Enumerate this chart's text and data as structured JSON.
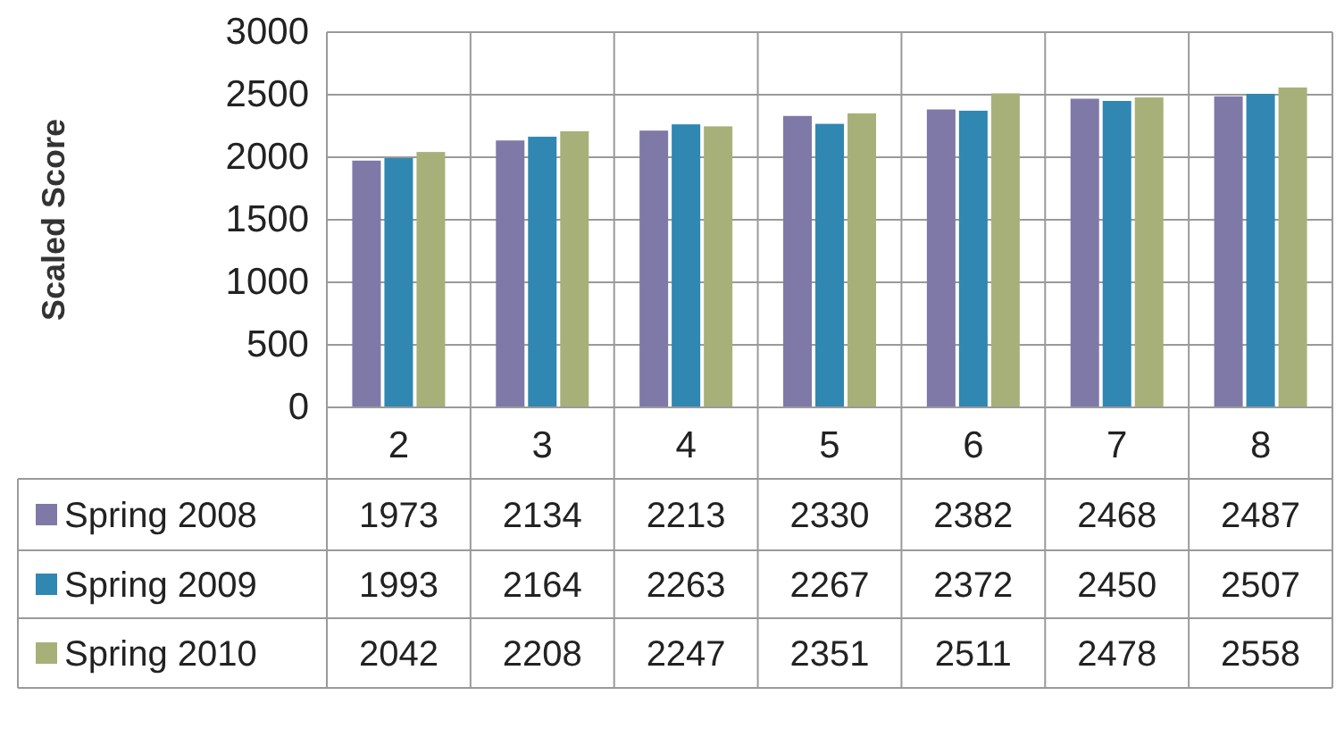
{
  "chart_data": {
    "type": "bar",
    "ylabel": "Scaled Score",
    "categories": [
      "2",
      "3",
      "4",
      "5",
      "6",
      "7",
      "8"
    ],
    "series": [
      {
        "name": "Spring 2008",
        "color": "#7f79a8",
        "values": [
          1973,
          2134,
          2213,
          2330,
          2382,
          2468,
          2487
        ]
      },
      {
        "name": "Spring 2009",
        "color": "#2f87b2",
        "values": [
          1993,
          2164,
          2263,
          2267,
          2372,
          2450,
          2507
        ]
      },
      {
        "name": "Spring 2010",
        "color": "#a8b07a",
        "values": [
          2042,
          2208,
          2247,
          2351,
          2511,
          2478,
          2558
        ]
      }
    ],
    "ylim": [
      0,
      3000
    ],
    "yticks": [
      0,
      500,
      1000,
      1500,
      2000,
      2500,
      3000
    ],
    "grid": true,
    "legend": "bottom",
    "data_labels": true
  }
}
